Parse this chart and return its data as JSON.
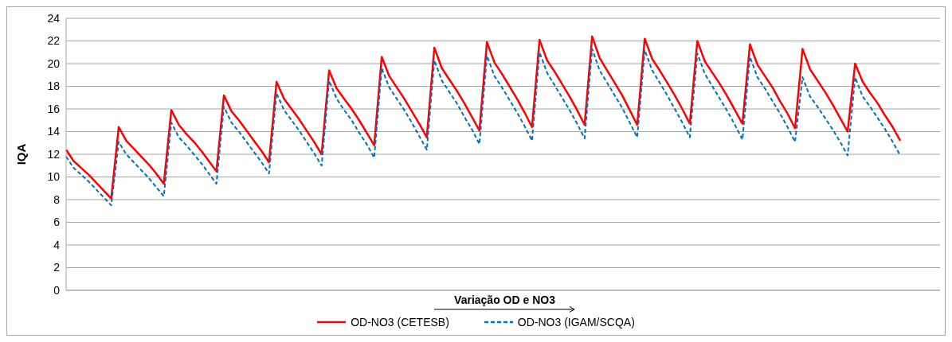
{
  "chart_data": {
    "type": "line",
    "xlabel": "Variação OD e NO3",
    "ylabel": "IQA",
    "categories": [
      null,
      null,
      null,
      null,
      null,
      null,
      null,
      null,
      null,
      null,
      null,
      null,
      null,
      null,
      null,
      null,
      null,
      null,
      null,
      null,
      null,
      null,
      null,
      null,
      null,
      null,
      null,
      null,
      null,
      null,
      null,
      null,
      null,
      null,
      null,
      null,
      null,
      null,
      null,
      null,
      null,
      null,
      null,
      null,
      null,
      null,
      null,
      null,
      null,
      null,
      null,
      null,
      null,
      null,
      null,
      null,
      null,
      null,
      null,
      null,
      null,
      null,
      null,
      null,
      null,
      null,
      null,
      null,
      null,
      null,
      null,
      null,
      null,
      null,
      null,
      null,
      null,
      null,
      null,
      null,
      null,
      null,
      null,
      null,
      null,
      null,
      null,
      null,
      null,
      null,
      null,
      null,
      null,
      null,
      null,
      null,
      null,
      null,
      null,
      null,
      null,
      null,
      null,
      null,
      null,
      null,
      null,
      null,
      null,
      null,
      null,
      null
    ],
    "series": [
      {
        "name": "OD-NO3 (CETESB)",
        "color": "#ff0000",
        "line_style": "solid",
        "values": [
          12.4,
          11.4,
          10.8,
          10.2,
          9.5,
          8.8,
          8.1,
          14.4,
          13.2,
          12.5,
          11.8,
          11.1,
          10.3,
          9.4,
          15.9,
          14.6,
          13.8,
          13.1,
          12.3,
          11.4,
          10.5,
          17.2,
          15.8,
          15.0,
          14.1,
          13.2,
          12.3,
          11.3,
          18.4,
          16.9,
          16.0,
          15.1,
          14.1,
          13.1,
          12.0,
          19.4,
          17.8,
          16.9,
          16.0,
          15.0,
          13.9,
          12.8,
          20.6,
          18.9,
          17.9,
          16.9,
          15.8,
          14.7,
          13.5,
          21.4,
          19.6,
          18.6,
          17.6,
          16.5,
          15.3,
          14.1,
          21.9,
          20.1,
          19.1,
          18.0,
          16.9,
          15.7,
          14.4,
          22.1,
          20.3,
          19.3,
          18.2,
          17.1,
          15.9,
          14.6,
          22.4,
          20.5,
          19.4,
          18.3,
          17.2,
          15.9,
          14.6,
          22.2,
          20.4,
          19.4,
          18.3,
          17.2,
          16.0,
          14.7,
          22.0,
          20.2,
          19.2,
          18.2,
          17.1,
          15.9,
          14.7,
          21.7,
          19.9,
          18.9,
          17.9,
          16.7,
          15.6,
          14.3,
          21.3,
          19.5,
          18.5,
          17.5,
          16.4,
          15.2,
          14.0,
          20.0,
          18.4,
          17.4,
          16.5,
          15.4,
          14.4,
          13.2
        ]
      },
      {
        "name": "OD-NO3 (IGAM/SCQA)",
        "color": "#0070c0",
        "line_style": "dashed",
        "values": [
          11.8,
          10.8,
          10.2,
          9.6,
          8.9,
          8.2,
          7.5,
          13.1,
          12.0,
          11.3,
          10.6,
          9.9,
          9.1,
          8.3,
          14.8,
          13.5,
          12.8,
          12.0,
          11.2,
          10.3,
          9.4,
          16.2,
          14.8,
          14.0,
          13.1,
          12.2,
          11.3,
          10.3,
          17.4,
          15.9,
          15.0,
          14.1,
          13.1,
          12.1,
          11.0,
          18.5,
          16.9,
          15.9,
          15.0,
          13.9,
          12.9,
          11.7,
          19.6,
          17.9,
          16.9,
          15.9,
          14.8,
          13.6,
          12.4,
          20.3,
          18.5,
          17.5,
          16.5,
          15.3,
          14.2,
          12.9,
          20.7,
          18.9,
          17.9,
          16.8,
          15.7,
          14.5,
          13.2,
          21.0,
          19.2,
          18.1,
          17.0,
          15.9,
          14.7,
          13.4,
          21.3,
          19.4,
          18.3,
          17.2,
          16.1,
          14.8,
          13.5,
          21.2,
          19.4,
          18.3,
          17.2,
          16.0,
          14.8,
          13.5,
          20.9,
          19.1,
          18.0,
          16.9,
          15.8,
          14.6,
          13.3,
          20.6,
          18.8,
          17.8,
          16.7,
          15.6,
          14.4,
          13.1,
          18.8,
          17.1,
          16.2,
          15.2,
          14.2,
          13.1,
          11.9,
          18.8,
          17.1,
          16.2,
          15.2,
          14.2,
          13.1,
          11.9
        ]
      }
    ],
    "ylim": [
      0,
      24
    ],
    "yticks": [
      0,
      2,
      4,
      6,
      8,
      10,
      12,
      14,
      16,
      18,
      20,
      22,
      24
    ],
    "grid": "y",
    "legend": "bottom",
    "marker": "none",
    "tick_labels": "y"
  }
}
